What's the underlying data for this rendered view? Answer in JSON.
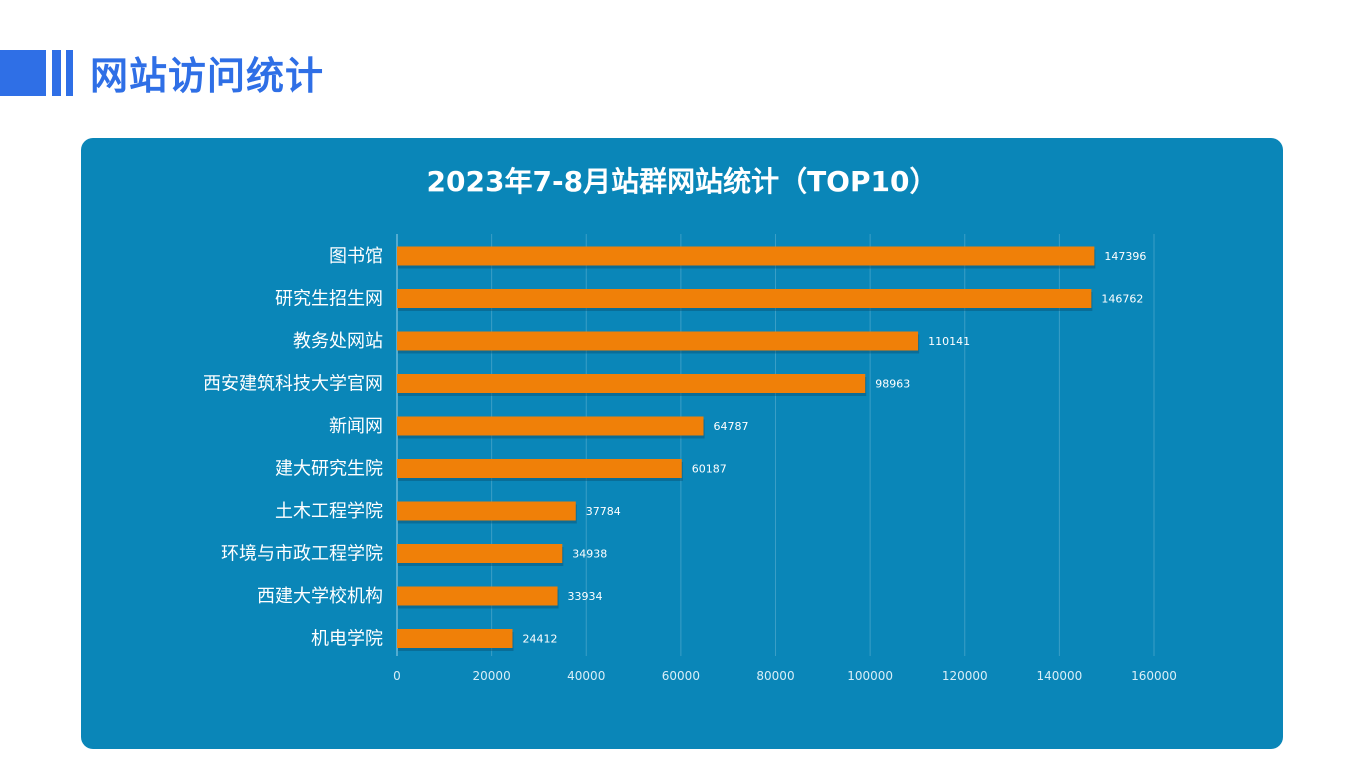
{
  "header": {
    "title": "网站访问统计"
  },
  "colors": {
    "header_blue": "#2f6fe6",
    "panel_bg": "#0a86b8",
    "bar": "#f08008",
    "gridline": "#3a9ec6"
  },
  "chart_data": {
    "type": "bar",
    "orientation": "horizontal",
    "title": "2023年7-8月站群网站统计（TOP10）",
    "xlabel": "",
    "ylabel": "",
    "categories": [
      "图书馆",
      "研究生招生网",
      "教务处网站",
      "西安建筑科技大学官网",
      "新闻网",
      "建大研究生院",
      "土木工程学院",
      "环境与市政工程学院",
      "西建大学校机构",
      "机电学院"
    ],
    "values": [
      147396,
      146762,
      110141,
      98963,
      64787,
      60187,
      37784,
      34938,
      33934,
      24412
    ],
    "value_labels": [
      "147396",
      "146762",
      "110141",
      "98963",
      "64787",
      "60187",
      "37784",
      "34938",
      "33934",
      "24412"
    ],
    "xlim": [
      0,
      160000
    ],
    "x_ticks": [
      "0",
      "20000",
      "40000",
      "60000",
      "80000",
      "100000",
      "120000",
      "140000",
      "160000"
    ],
    "grid": true,
    "legend": "none"
  }
}
